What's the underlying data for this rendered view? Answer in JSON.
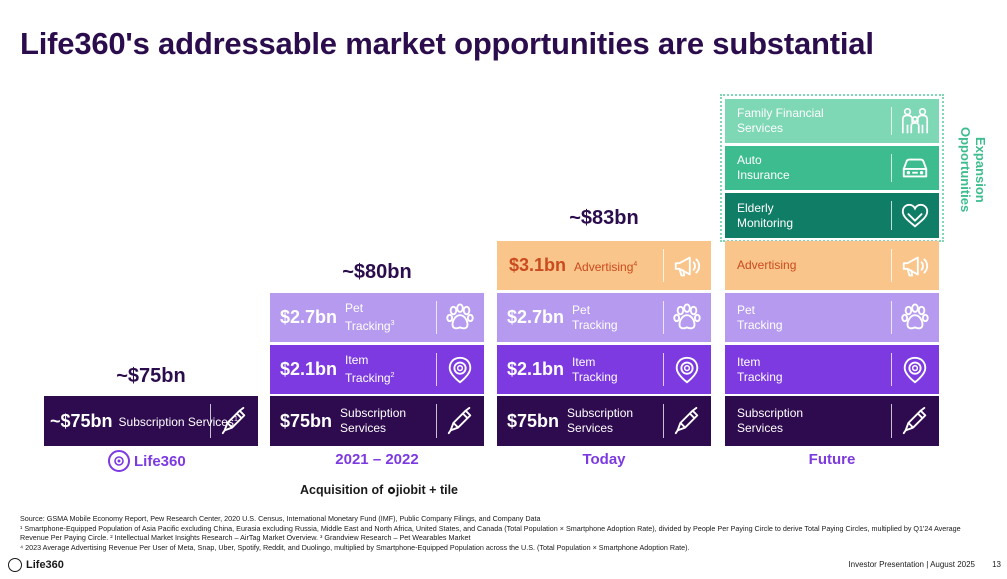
{
  "title": "Life360's addressable market opportunities are substantial",
  "totals": {
    "col1": "~$75bn",
    "col2": "~$80bn",
    "col3": "~$83bn"
  },
  "col1": {
    "subscription": {
      "amount": "~$75bn",
      "label": "Subscription Services",
      "sup": "1"
    },
    "footer_logo": "Life360"
  },
  "col2": {
    "pet": {
      "amount": "$2.7bn",
      "label": "Pet Tracking",
      "sup": "3"
    },
    "item": {
      "amount": "$2.1bn",
      "label": "Item Tracking",
      "sup": "2"
    },
    "subscription": {
      "amount": "$75bn",
      "label": "Subscription Services"
    },
    "period": "2021 – 2022"
  },
  "col3": {
    "advertising": {
      "amount": "$3.1bn",
      "label": "Advertising",
      "sup": "4"
    },
    "pet": {
      "amount": "$2.7bn",
      "label": "Pet Tracking"
    },
    "item": {
      "amount": "$2.1bn",
      "label": "Item Tracking"
    },
    "subscription": {
      "amount": "$75bn",
      "label": "Subscription Services"
    },
    "period": "Today"
  },
  "col4": {
    "family": {
      "label": "Family Financial Services"
    },
    "auto": {
      "label": "Auto Insurance"
    },
    "elderly": {
      "label": "Elderly Monitoring"
    },
    "advertising": {
      "label": "Advertising"
    },
    "pet": {
      "label": "Pet Tracking"
    },
    "item": {
      "label": "Item Tracking"
    },
    "subscription": {
      "label": "Subscription Services"
    },
    "period": "Future"
  },
  "expansion_label": "Expansion Opportunities",
  "acquisition": {
    "prefix": "Acquisition of",
    "brand1": "jiobit",
    "plus": "+",
    "brand2": "tile"
  },
  "footnotes": {
    "source": "Source: GSMA Mobile Economy Report, Pew Research Center, 2020 U.S. Census, International Monetary Fund (IMF), Public Company Filings, and Company Data",
    "note1": "¹ Smartphone-Equipped Population of Asia Pacific excluding China, Eurasia excluding Russia, Middle East and North Africa, United States, and Canada (Total Population × Smartphone Adoption Rate), divided by People Per Paying Circle to derive Total Paying Circles, multiplied by Q1'24 Average Revenue Per Paying Circle. ² Intellectual Market Insights Research – AirTag Market Overview. ³ Grandview Research – Pet Wearables Market",
    "note4": "⁴ 2023 Average Advertising Revenue Per User of Meta, Snap, Uber, Spotify, Reddit, and Duolingo, multiplied by Smartphone-Equipped Population across the U.S. (Total Population × Smartphone Adoption Rate)."
  },
  "bottom": {
    "logo": "Life360",
    "presentation": "Investor Presentation  |  August 2025",
    "page": "13"
  },
  "colors": {
    "subscription": "#2e0a4e",
    "item": "#7c3ae0",
    "pet": "#b69af0",
    "advertising": "#f9c58b",
    "elderly": "#107d67",
    "auto": "#3dbd8f",
    "family": "#7fd8b5"
  }
}
